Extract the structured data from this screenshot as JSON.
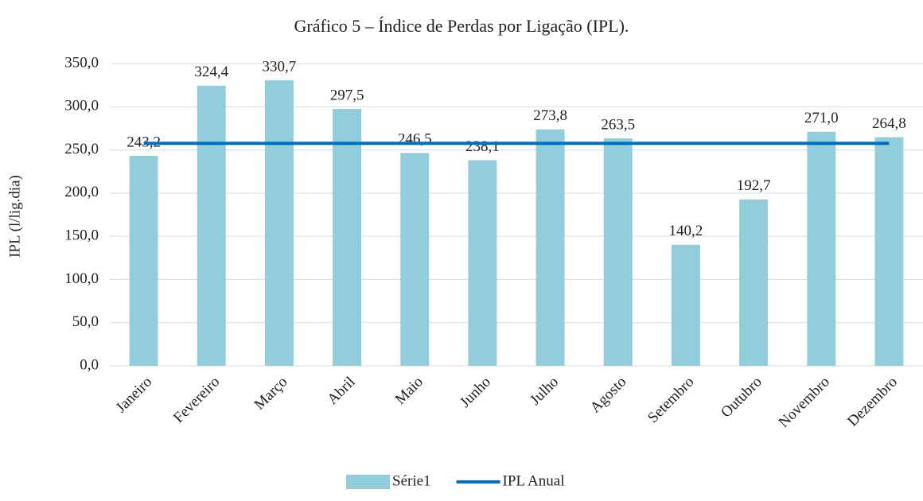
{
  "chart_data": {
    "type": "bar",
    "title": "Gráfico 5 – Índice de Perdas por Ligação (IPL).",
    "y_label": "IPL (l/lig.dia)",
    "categories": [
      "Janeiro",
      "Fevereiro",
      "Março",
      "Abril",
      "Maio",
      "Junho",
      "Julho",
      "Agosto",
      "Setembro",
      "Outubro",
      "Novembro",
      "Dezembro"
    ],
    "series": [
      {
        "name": "Série1",
        "type": "bar",
        "color": "#92cddc",
        "values": [
          243.2,
          324.4,
          330.7,
          297.5,
          246.5,
          238.1,
          273.8,
          263.5,
          140.2,
          192.7,
          271.0,
          264.8
        ],
        "value_labels": [
          "243,2",
          "324,4",
          "330,7",
          "297,5",
          "246,5",
          "238,1",
          "273,8",
          "263,5",
          "140,2",
          "192,7",
          "271,0",
          "264,8"
        ]
      },
      {
        "name": "IPL Anual",
        "type": "line",
        "color": "#0070c0",
        "values": [
          257.7,
          257.7,
          257.7,
          257.7,
          257.7,
          257.7,
          257.7,
          257.7,
          257.7,
          257.7,
          257.7,
          257.7
        ]
      }
    ],
    "ylim": [
      0,
      350
    ],
    "yticks": [
      {
        "value": 0,
        "label": "0,0"
      },
      {
        "value": 50,
        "label": "50,0"
      },
      {
        "value": 100,
        "label": "100,0"
      },
      {
        "value": 150,
        "label": "150,0"
      },
      {
        "value": 200,
        "label": "200,0"
      },
      {
        "value": 250,
        "label": "250,0"
      },
      {
        "value": 300,
        "label": "300,0"
      },
      {
        "value": 350,
        "label": "350,0"
      }
    ],
    "grid": true,
    "legend": "bottom"
  }
}
